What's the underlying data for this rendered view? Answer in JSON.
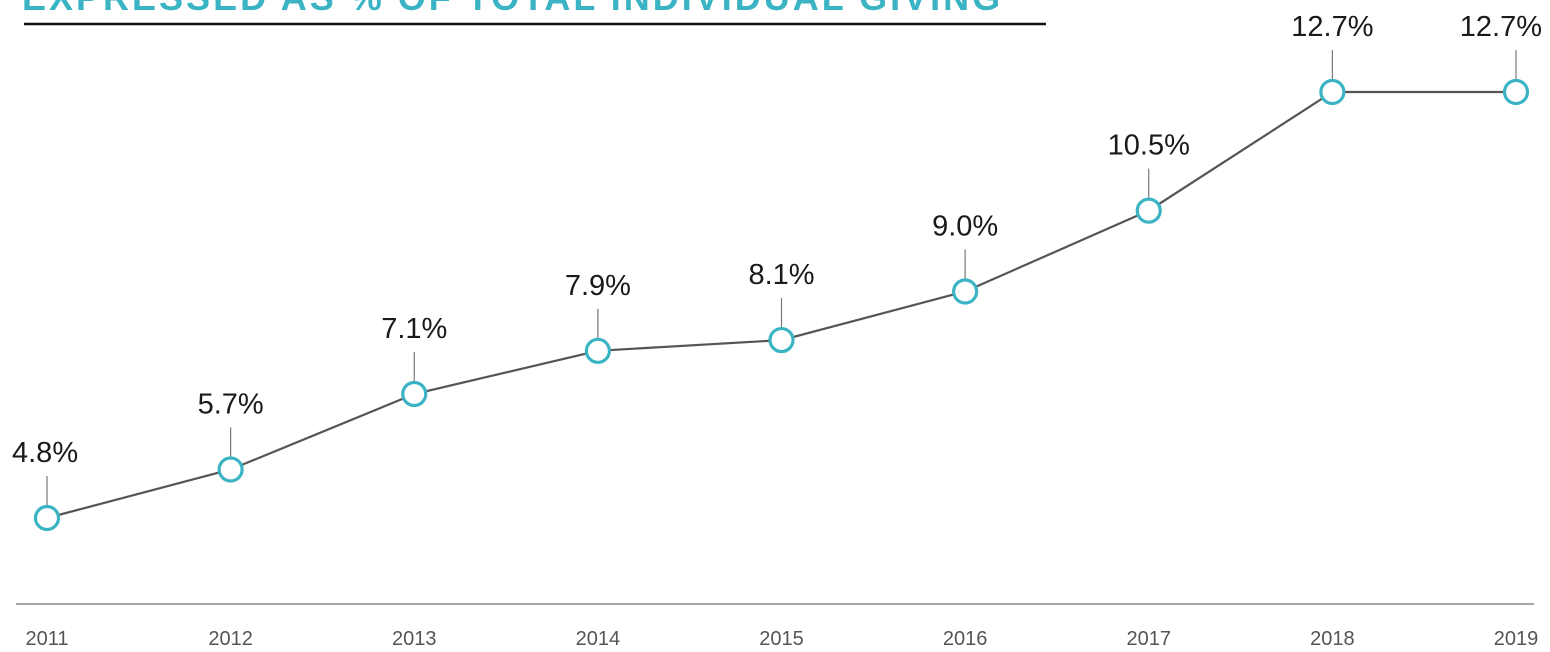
{
  "title": "EXPRESSED AS % OF TOTAL INDIVIDUAL GIVING",
  "colors": {
    "accent": "#3ab4c4",
    "line": "#555555",
    "axis": "#888888",
    "title_rule": "#111111"
  },
  "chart_data": {
    "type": "line",
    "title": "EXPRESSED AS % OF TOTAL INDIVIDUAL GIVING",
    "xlabel": "",
    "ylabel": "",
    "categories": [
      "2011",
      "2012",
      "2013",
      "2014",
      "2015",
      "2016",
      "2017",
      "2018",
      "2019"
    ],
    "series": [
      {
        "values": [
          4.8,
          5.7,
          7.1,
          7.9,
          8.1,
          9.0,
          10.5,
          12.7,
          12.7
        ]
      }
    ],
    "data_labels": [
      "4.8%",
      "5.7%",
      "7.1%",
      "7.9%",
      "8.1%",
      "9.0%",
      "10.5%",
      "12.7%",
      "12.7%"
    ],
    "grid": false,
    "legend": "none"
  }
}
